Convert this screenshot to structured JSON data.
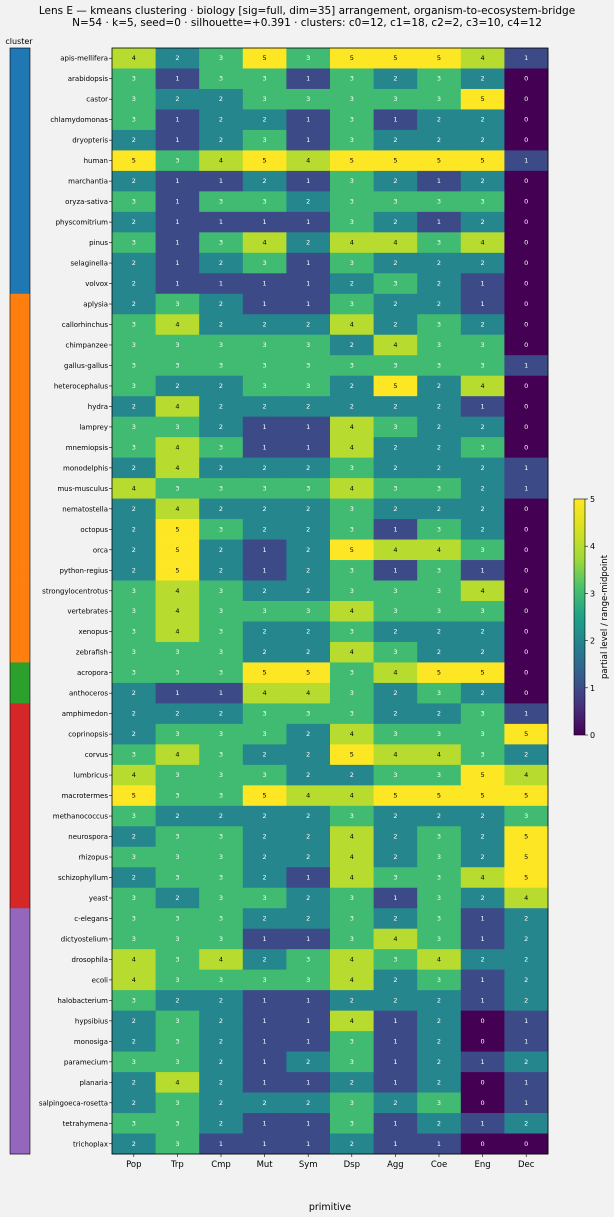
{
  "chart_data": {
    "type": "heatmap",
    "title": "Lens E — kmeans clustering · biology [sig=full, dim=35] arrangement, organism-to-ecosystem-bridge",
    "subtitle": "N=54 · k=5, seed=0 · silhouette=+0.391 · clusters: c0=12, c1=18, c2=2, c3=10, c4=12",
    "xlabel": "primitive",
    "cluster_label": "cluster",
    "colorbar_label": "partial level / range-midpoint",
    "colorbar_ticks": [
      "0",
      "1",
      "2",
      "3",
      "4",
      "5"
    ],
    "vmin": 0,
    "vmax": 5,
    "columns": [
      "Pop",
      "Trp",
      "Cmp",
      "Mut",
      "Sym",
      "Dsp",
      "Agg",
      "Coe",
      "Eng",
      "Dec"
    ],
    "cluster_colors": [
      "#1f77b4",
      "#ff7f0e",
      "#2ca02c",
      "#d62728",
      "#9467bd"
    ],
    "rows": [
      {
        "label": "apis-mellifera",
        "cluster": 0,
        "values": [
          4,
          2,
          3,
          5,
          3,
          5,
          5,
          5,
          4,
          1
        ]
      },
      {
        "label": "arabidopsis",
        "cluster": 0,
        "values": [
          3,
          1,
          3,
          3,
          1,
          3,
          2,
          3,
          2,
          0
        ]
      },
      {
        "label": "castor",
        "cluster": 0,
        "values": [
          3,
          2,
          2,
          3,
          3,
          3,
          3,
          3,
          5,
          0
        ]
      },
      {
        "label": "chlamydomonas",
        "cluster": 0,
        "values": [
          3,
          1,
          2,
          2,
          1,
          3,
          1,
          2,
          2,
          0
        ]
      },
      {
        "label": "dryopteris",
        "cluster": 0,
        "values": [
          2,
          1,
          2,
          3,
          1,
          3,
          2,
          2,
          2,
          0
        ]
      },
      {
        "label": "human",
        "cluster": 0,
        "values": [
          5,
          3,
          4,
          5,
          4,
          5,
          5,
          5,
          5,
          1
        ]
      },
      {
        "label": "marchantia",
        "cluster": 0,
        "values": [
          2,
          1,
          1,
          2,
          1,
          3,
          2,
          1,
          2,
          0
        ]
      },
      {
        "label": "oryza-sativa",
        "cluster": 0,
        "values": [
          3,
          1,
          3,
          3,
          2,
          3,
          3,
          3,
          3,
          0
        ]
      },
      {
        "label": "physcomitrium",
        "cluster": 0,
        "values": [
          2,
          1,
          1,
          1,
          1,
          3,
          2,
          1,
          2,
          0
        ]
      },
      {
        "label": "pinus",
        "cluster": 0,
        "values": [
          3,
          1,
          3,
          4,
          2,
          4,
          4,
          3,
          4,
          0
        ]
      },
      {
        "label": "selaginella",
        "cluster": 0,
        "values": [
          2,
          1,
          2,
          3,
          1,
          3,
          2,
          2,
          2,
          0
        ]
      },
      {
        "label": "volvox",
        "cluster": 0,
        "values": [
          2,
          1,
          1,
          1,
          1,
          2,
          3,
          2,
          1,
          0
        ]
      },
      {
        "label": "aplysia",
        "cluster": 1,
        "values": [
          2,
          3,
          2,
          1,
          1,
          3,
          2,
          2,
          1,
          0
        ]
      },
      {
        "label": "callorhinchus",
        "cluster": 1,
        "values": [
          3,
          4,
          2,
          2,
          2,
          4,
          2,
          3,
          2,
          0
        ]
      },
      {
        "label": "chimpanzee",
        "cluster": 1,
        "values": [
          3,
          3,
          3,
          3,
          3,
          2,
          4,
          3,
          3,
          0
        ]
      },
      {
        "label": "gallus-gallus",
        "cluster": 1,
        "values": [
          3,
          3,
          3,
          3,
          3,
          3,
          3,
          3,
          3,
          1
        ]
      },
      {
        "label": "heterocephalus",
        "cluster": 1,
        "values": [
          3,
          2,
          2,
          3,
          3,
          2,
          5,
          2,
          4,
          0
        ]
      },
      {
        "label": "hydra",
        "cluster": 1,
        "values": [
          2,
          4,
          2,
          2,
          2,
          2,
          2,
          2,
          1,
          0
        ]
      },
      {
        "label": "lamprey",
        "cluster": 1,
        "values": [
          3,
          3,
          2,
          1,
          1,
          4,
          3,
          2,
          2,
          0
        ]
      },
      {
        "label": "mnemiopsis",
        "cluster": 1,
        "values": [
          3,
          4,
          3,
          1,
          1,
          4,
          2,
          2,
          3,
          0
        ]
      },
      {
        "label": "monodelphis",
        "cluster": 1,
        "values": [
          2,
          4,
          2,
          2,
          2,
          3,
          2,
          2,
          2,
          1
        ]
      },
      {
        "label": "mus-musculus",
        "cluster": 1,
        "values": [
          4,
          3,
          3,
          3,
          3,
          4,
          3,
          3,
          2,
          1
        ]
      },
      {
        "label": "nematostella",
        "cluster": 1,
        "values": [
          2,
          4,
          2,
          2,
          2,
          3,
          2,
          2,
          2,
          0
        ]
      },
      {
        "label": "octopus",
        "cluster": 1,
        "values": [
          2,
          5,
          3,
          2,
          2,
          3,
          1,
          3,
          2,
          0
        ]
      },
      {
        "label": "orca",
        "cluster": 1,
        "values": [
          2,
          5,
          2,
          1,
          2,
          5,
          4,
          4,
          3,
          0
        ]
      },
      {
        "label": "python-regius",
        "cluster": 1,
        "values": [
          2,
          5,
          2,
          1,
          2,
          3,
          1,
          3,
          1,
          0
        ]
      },
      {
        "label": "strongylocentrotus",
        "cluster": 1,
        "values": [
          3,
          4,
          3,
          2,
          2,
          3,
          3,
          3,
          4,
          0
        ]
      },
      {
        "label": "vertebrates",
        "cluster": 1,
        "values": [
          3,
          4,
          3,
          3,
          3,
          4,
          3,
          3,
          3,
          0
        ]
      },
      {
        "label": "xenopus",
        "cluster": 1,
        "values": [
          3,
          4,
          3,
          2,
          2,
          3,
          2,
          2,
          2,
          0
        ]
      },
      {
        "label": "zebrafish",
        "cluster": 1,
        "values": [
          3,
          3,
          3,
          2,
          2,
          4,
          3,
          2,
          2,
          0
        ]
      },
      {
        "label": "acropora",
        "cluster": 2,
        "values": [
          3,
          3,
          3,
          5,
          5,
          3,
          4,
          5,
          5,
          0
        ]
      },
      {
        "label": "anthoceros",
        "cluster": 2,
        "values": [
          2,
          1,
          1,
          4,
          4,
          3,
          2,
          3,
          2,
          0
        ]
      },
      {
        "label": "amphimedon",
        "cluster": 3,
        "values": [
          2,
          2,
          2,
          3,
          3,
          3,
          2,
          2,
          3,
          1
        ]
      },
      {
        "label": "coprinopsis",
        "cluster": 3,
        "values": [
          2,
          3,
          3,
          3,
          2,
          4,
          3,
          3,
          3,
          5
        ]
      },
      {
        "label": "corvus",
        "cluster": 3,
        "values": [
          3,
          4,
          3,
          2,
          2,
          5,
          4,
          4,
          3,
          2
        ]
      },
      {
        "label": "lumbricus",
        "cluster": 3,
        "values": [
          4,
          3,
          3,
          3,
          2,
          2,
          3,
          3,
          5,
          4
        ]
      },
      {
        "label": "macrotermes",
        "cluster": 3,
        "values": [
          5,
          3,
          3,
          5,
          4,
          4,
          5,
          5,
          5,
          5
        ]
      },
      {
        "label": "methanococcus",
        "cluster": 3,
        "values": [
          3,
          2,
          2,
          2,
          2,
          3,
          2,
          2,
          2,
          3
        ]
      },
      {
        "label": "neurospora",
        "cluster": 3,
        "values": [
          2,
          3,
          3,
          2,
          2,
          4,
          2,
          3,
          2,
          5
        ]
      },
      {
        "label": "rhizopus",
        "cluster": 3,
        "values": [
          3,
          3,
          3,
          2,
          2,
          4,
          2,
          3,
          2,
          5
        ]
      },
      {
        "label": "schizophyllum",
        "cluster": 3,
        "values": [
          2,
          3,
          3,
          2,
          1,
          4,
          3,
          3,
          4,
          5
        ]
      },
      {
        "label": "yeast",
        "cluster": 3,
        "values": [
          3,
          2,
          3,
          3,
          2,
          3,
          1,
          3,
          2,
          4
        ]
      },
      {
        "label": "c-elegans",
        "cluster": 4,
        "values": [
          3,
          3,
          3,
          2,
          2,
          3,
          2,
          3,
          1,
          2
        ]
      },
      {
        "label": "dictyostelium",
        "cluster": 4,
        "values": [
          3,
          3,
          3,
          1,
          1,
          3,
          4,
          3,
          1,
          2
        ]
      },
      {
        "label": "drosophila",
        "cluster": 4,
        "values": [
          4,
          3,
          4,
          2,
          3,
          4,
          3,
          4,
          2,
          2
        ]
      },
      {
        "label": "ecoli",
        "cluster": 4,
        "values": [
          4,
          3,
          3,
          3,
          3,
          4,
          2,
          3,
          1,
          2
        ]
      },
      {
        "label": "halobacterium",
        "cluster": 4,
        "values": [
          3,
          2,
          2,
          1,
          1,
          2,
          2,
          2,
          1,
          2
        ]
      },
      {
        "label": "hypsibius",
        "cluster": 4,
        "values": [
          2,
          3,
          2,
          1,
          1,
          4,
          1,
          2,
          0,
          1
        ]
      },
      {
        "label": "monosiga",
        "cluster": 4,
        "values": [
          2,
          3,
          2,
          1,
          1,
          3,
          1,
          2,
          0,
          1
        ]
      },
      {
        "label": "paramecium",
        "cluster": 4,
        "values": [
          3,
          3,
          2,
          1,
          2,
          3,
          1,
          2,
          1,
          2
        ]
      },
      {
        "label": "planaria",
        "cluster": 4,
        "values": [
          2,
          4,
          2,
          1,
          1,
          2,
          1,
          2,
          0,
          1
        ]
      },
      {
        "label": "salpingoeca-rosetta",
        "cluster": 4,
        "values": [
          2,
          3,
          2,
          2,
          2,
          3,
          2,
          3,
          0,
          1
        ]
      },
      {
        "label": "tetrahymena",
        "cluster": 4,
        "values": [
          3,
          3,
          2,
          1,
          1,
          3,
          1,
          2,
          1,
          2
        ]
      },
      {
        "label": "trichoplax",
        "cluster": 4,
        "values": [
          2,
          3,
          1,
          1,
          1,
          2,
          1,
          1,
          0,
          0
        ]
      }
    ]
  }
}
